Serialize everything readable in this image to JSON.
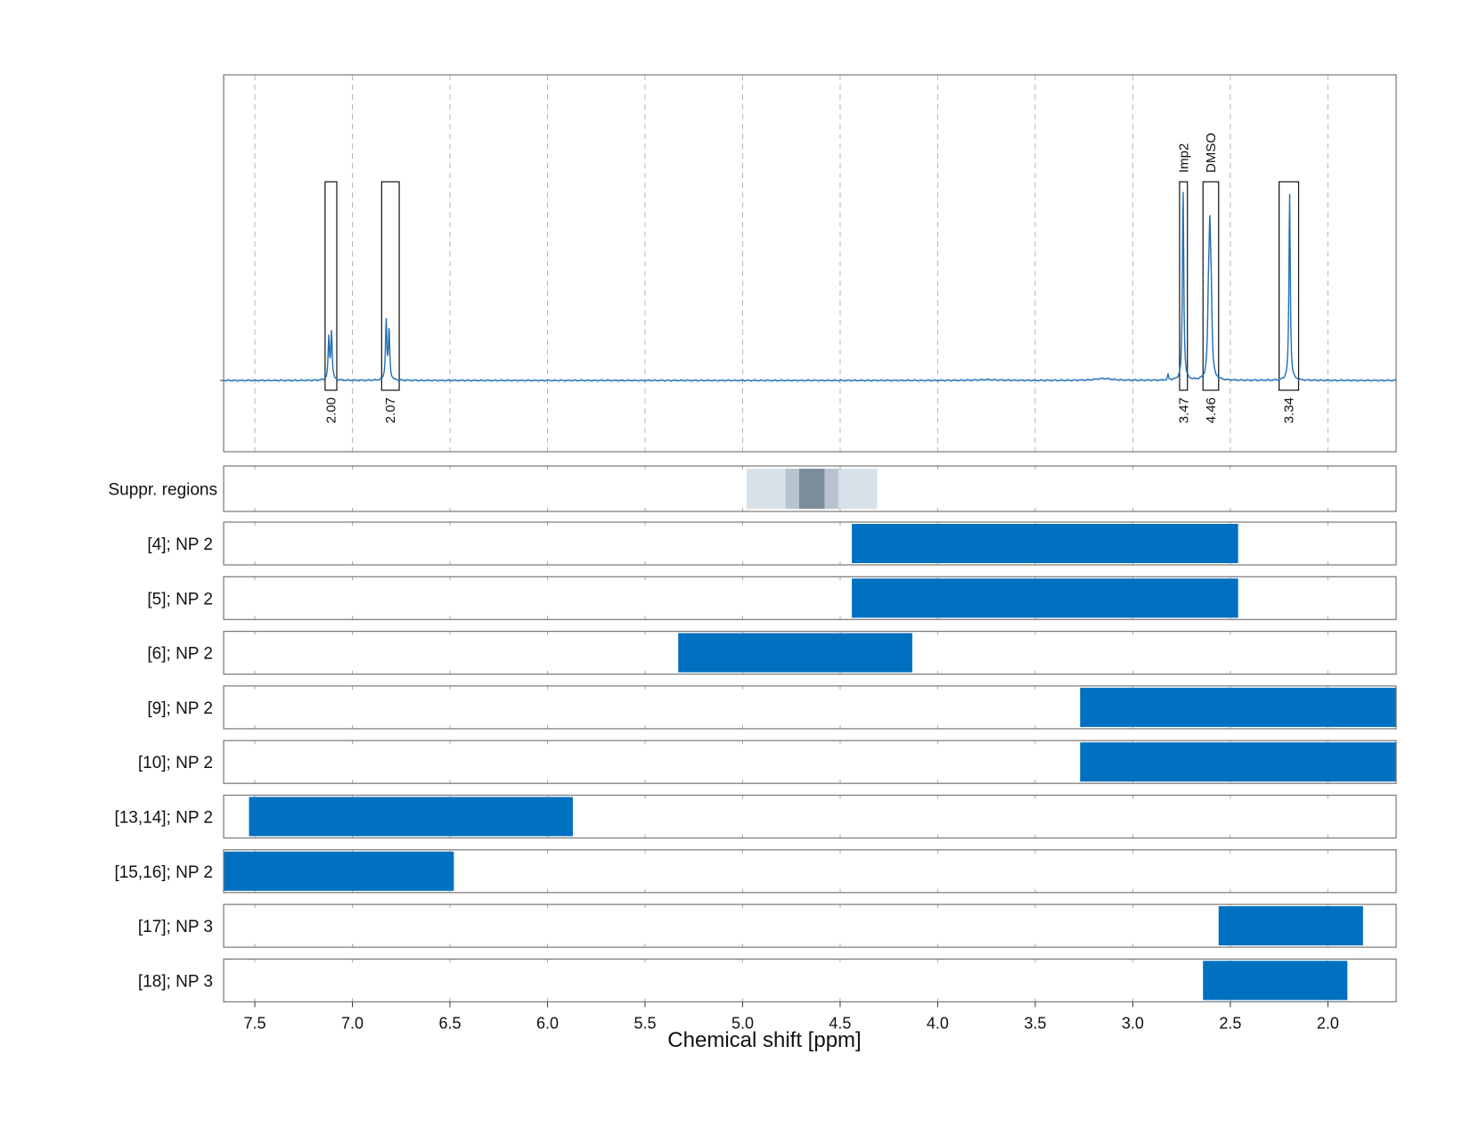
{
  "chart_data": {
    "type": "line",
    "xlabel": "Chemical shift [ppm]",
    "x_axis": {
      "range_ppm": [
        7.66,
        1.65
      ],
      "reversed": true,
      "ticks": [
        "7.5",
        "7.0",
        "6.5",
        "6.0",
        "5.5",
        "5.0",
        "4.5",
        "4.0",
        "3.5",
        "3.0",
        "2.5",
        "2.0"
      ],
      "tick_values": [
        7.5,
        7.0,
        6.5,
        6.0,
        5.5,
        5.0,
        4.5,
        4.0,
        3.5,
        3.0,
        2.5,
        2.0
      ],
      "grid": "dashed vertical"
    },
    "spectrum": {
      "color": "#1f6fb8",
      "peaks": [
        {
          "ppm": 7.121,
          "height": 0.22,
          "width": 0.004
        },
        {
          "ppm": 7.107,
          "height": 0.25,
          "width": 0.004
        },
        {
          "ppm": 6.827,
          "height": 0.31,
          "width": 0.004
        },
        {
          "ppm": 6.812,
          "height": 0.26,
          "width": 0.004
        },
        {
          "ppm": 3.75,
          "height": 0.004,
          "width": 0.06
        },
        {
          "ppm": 3.15,
          "height": 0.01,
          "width": 0.05
        },
        {
          "ppm": 2.819,
          "height": 0.03,
          "width": 0.003
        },
        {
          "ppm": 2.742,
          "height": 1.0,
          "width": 0.004
        },
        {
          "ppm": 2.612,
          "height": 0.32,
          "width": 0.005
        },
        {
          "ppm": 2.605,
          "height": 0.65,
          "width": 0.005
        },
        {
          "ppm": 2.598,
          "height": 0.33,
          "width": 0.005
        },
        {
          "ppm": 2.196,
          "height": 0.98,
          "width": 0.004
        }
      ]
    },
    "integration_regions": [
      {
        "from_ppm": 7.14,
        "to_ppm": 7.08,
        "value": "2.00",
        "label": ""
      },
      {
        "from_ppm": 6.85,
        "to_ppm": 6.76,
        "value": "2.07",
        "label": ""
      },
      {
        "from_ppm": 2.76,
        "to_ppm": 2.72,
        "value": "3.47",
        "label": "Imp2"
      },
      {
        "from_ppm": 2.64,
        "to_ppm": 2.56,
        "value": "4.46",
        "label": "DMSO"
      },
      {
        "from_ppm": 2.25,
        "to_ppm": 2.15,
        "value": "3.34",
        "label": ""
      }
    ],
    "suppressed_regions": {
      "label": "Suppr. regions",
      "bands": [
        {
          "from_ppm": 4.98,
          "to_ppm": 4.31,
          "level": 1
        },
        {
          "from_ppm": 4.78,
          "to_ppm": 4.51,
          "level": 2
        },
        {
          "from_ppm": 4.71,
          "to_ppm": 4.58,
          "level": 3
        }
      ],
      "colors": [
        "#d9e1e8",
        "#b7c4cf",
        "#7b8d9b"
      ]
    },
    "assignments": [
      {
        "label": "[4]; NP 2",
        "from_ppm": 4.44,
        "to_ppm": 2.46
      },
      {
        "label": "[5]; NP 2",
        "from_ppm": 4.44,
        "to_ppm": 2.46
      },
      {
        "label": "[6]; NP 2",
        "from_ppm": 5.33,
        "to_ppm": 4.13
      },
      {
        "label": "[9]; NP 2",
        "from_ppm": 3.27,
        "to_ppm": 1.65
      },
      {
        "label": "[10]; NP 2",
        "from_ppm": 3.27,
        "to_ppm": 1.65
      },
      {
        "label": "[13,14]; NP 2",
        "from_ppm": 7.53,
        "to_ppm": 5.87
      },
      {
        "label": "[15,16]; NP 2",
        "from_ppm": 7.66,
        "to_ppm": 6.48
      },
      {
        "label": "[17]; NP 3",
        "from_ppm": 2.56,
        "to_ppm": 1.82
      },
      {
        "label": "[18]; NP 3",
        "from_ppm": 2.64,
        "to_ppm": 1.9
      }
    ],
    "colors": {
      "bar": "#0070c0",
      "integral_text": "#e8141b",
      "frame": "#777777",
      "grid": "#b5b5b5"
    }
  }
}
